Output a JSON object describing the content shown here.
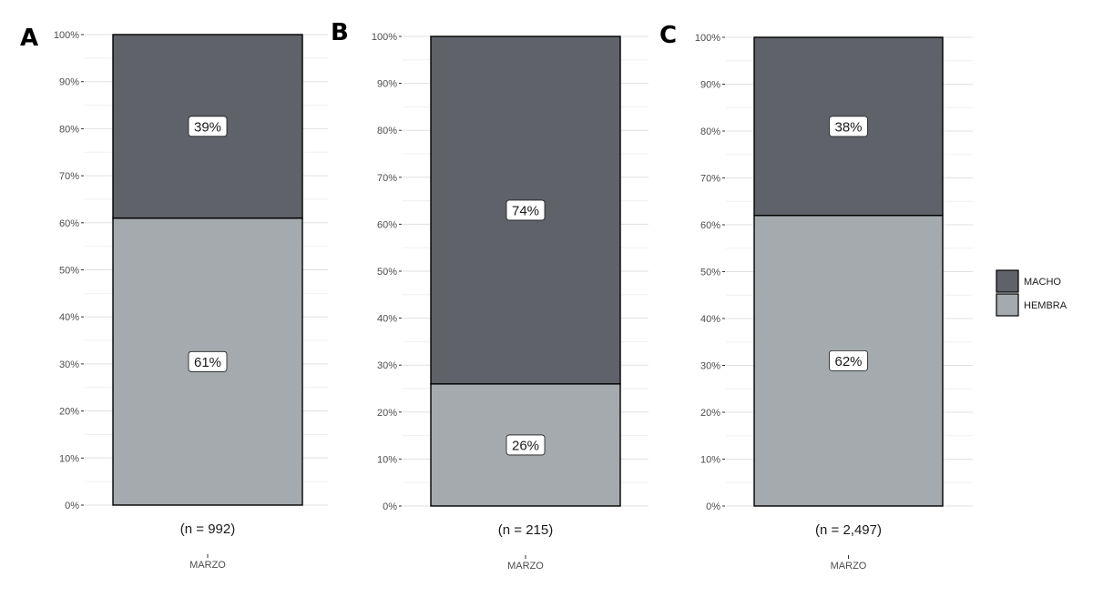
{
  "colors": {
    "MACHO": "#5f6268",
    "HEMBRA": "#a4aaad",
    "grid_major": "#e0e0e0",
    "grid_minor": "#f0f0f0",
    "axis_text": "#4d4d4d"
  },
  "legend": {
    "position": "right",
    "items": [
      {
        "key": "MACHO",
        "label": "MACHO"
      },
      {
        "key": "HEMBRA",
        "label": "HEMBRA"
      }
    ]
  },
  "chart_data": [
    {
      "panel": "A",
      "type": "bar",
      "stacked": true,
      "categories": [
        "MARZO"
      ],
      "series": [
        {
          "name": "MACHO",
          "values": [
            39
          ],
          "label": "39%"
        },
        {
          "name": "HEMBRA",
          "values": [
            61
          ],
          "label": "61%"
        }
      ],
      "n_label": "(n = 992)",
      "ylim": [
        0,
        100
      ],
      "yticks": [
        "0%",
        "10%",
        "20%",
        "30%",
        "40%",
        "50%",
        "60%",
        "70%",
        "80%",
        "90%",
        "100%"
      ],
      "grid": true
    },
    {
      "panel": "B",
      "type": "bar",
      "stacked": true,
      "categories": [
        "MARZO"
      ],
      "series": [
        {
          "name": "MACHO",
          "values": [
            74
          ],
          "label": "74%"
        },
        {
          "name": "HEMBRA",
          "values": [
            26
          ],
          "label": "26%"
        }
      ],
      "n_label": "(n = 215)",
      "ylim": [
        0,
        100
      ],
      "yticks": [
        "0%",
        "10%",
        "20%",
        "30%",
        "40%",
        "50%",
        "60%",
        "70%",
        "80%",
        "90%",
        "100%"
      ],
      "grid": true
    },
    {
      "panel": "C",
      "type": "bar",
      "stacked": true,
      "categories": [
        "MARZO"
      ],
      "series": [
        {
          "name": "MACHO",
          "values": [
            38
          ],
          "label": "38%"
        },
        {
          "name": "HEMBRA",
          "values": [
            62
          ],
          "label": "62%"
        }
      ],
      "n_label": "(n = 2,497)",
      "ylim": [
        0,
        100
      ],
      "yticks": [
        "0%",
        "10%",
        "20%",
        "30%",
        "40%",
        "50%",
        "60%",
        "70%",
        "80%",
        "90%",
        "100%"
      ],
      "grid": true
    }
  ]
}
